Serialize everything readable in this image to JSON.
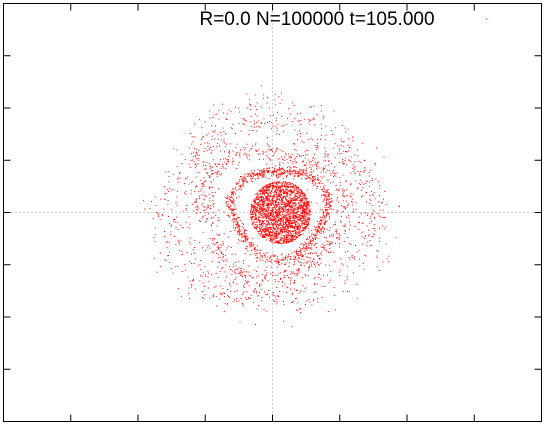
{
  "title": "R=0.0 N=100000 t=105.000",
  "colors": {
    "points": "#ff0000",
    "frame": "#000000",
    "zero_axis": "#a0a0a0",
    "background": "#ffffff"
  },
  "chart_data": {
    "type": "scatter",
    "title": "R=0.0 N=100000 t=105.000",
    "xlabel": "",
    "ylabel": "",
    "xlim": [
      -4,
      4
    ],
    "ylim": [
      -4,
      4
    ],
    "x_ticks": [
      -3,
      -2,
      -1,
      0,
      1,
      2,
      3
    ],
    "y_ticks": [
      -3,
      -2,
      -1,
      0,
      1,
      2,
      3
    ],
    "tick_labels_shown": false,
    "zero_axes": "dotted gray",
    "grid": false,
    "legend": "none",
    "marker": "tiny red dots",
    "distribution": {
      "description": "particle cloud forming a spiral with dense core and several loose outer rings",
      "core": {
        "center": [
          0.12,
          0.0
        ],
        "rx": 0.45,
        "ry": 0.6
      },
      "rings": [
        {
          "center": [
            0.1,
            0.0
          ],
          "rx": 0.7,
          "ry": 0.85
        },
        {
          "center": [
            0.0,
            0.0
          ],
          "rx": 1.05,
          "ry": 1.2
        },
        {
          "center": [
            0.0,
            0.05
          ],
          "rx": 1.4,
          "ry": 1.6
        },
        {
          "center": [
            0.0,
            0.05
          ],
          "rx": 1.62,
          "ry": 1.9
        }
      ],
      "outliers": [
        [
          3.18,
          3.7
        ]
      ]
    }
  }
}
